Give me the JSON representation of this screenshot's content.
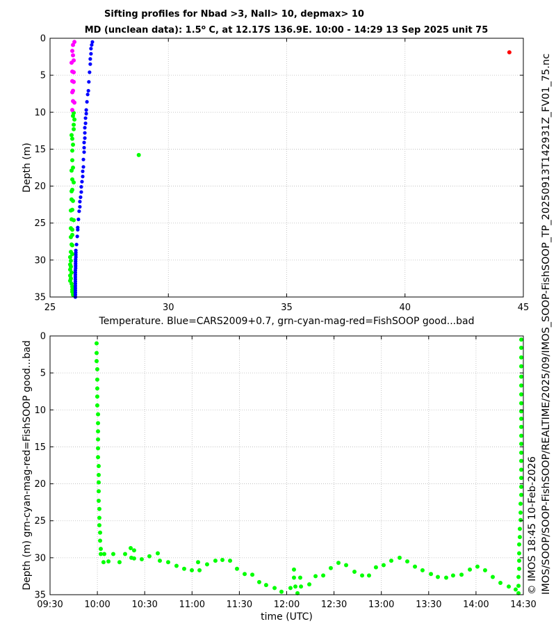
{
  "footer_annotations": {
    "file_path": "IMOS/SOOP/SOOP-FishSOOP/REALTIME/2025/09/IMOS_SOOP-FishSOOP_TP_20250913T142931Z_FV01_75.nc",
    "copyright": "© IMOS 18:45 10-Feb-2026"
  },
  "chart_data": [
    {
      "type": "scatter",
      "title": {
        "line1": "Sifting profiles for Nbad >3, Nall> 10, depmax> 10",
        "line2": [
          "MD (unclean data): 1.5",
          "o",
          " C, at 12.17S 136.9E. 10:00 - 14:29 13 Sep 2025 unit 75"
        ]
      },
      "xlabel": "Temperature. Blue=CARS2009+0.7, grn-cyan-mag-red=FishSOOP good...bad",
      "ylabel": "Depth (m)",
      "xlim": [
        25,
        45
      ],
      "ylim": [
        0,
        35
      ],
      "y_reversed": true,
      "grid": true,
      "xticks": [
        25,
        30,
        35,
        40,
        45
      ],
      "xtick_labels": [
        "25",
        "30",
        "35",
        "40",
        "45"
      ],
      "yticks": [
        0,
        5,
        10,
        15,
        20,
        25,
        30,
        35
      ],
      "ytick_labels": [
        "0",
        "5",
        "10",
        "15",
        "20",
        "25",
        "30",
        "35"
      ],
      "series": [
        {
          "color": "#00ff00",
          "points": [
            [
              26.0,
              10.1
            ],
            [
              25.97,
              10.5
            ],
            [
              26.03,
              11.0
            ],
            [
              26.0,
              11.7
            ],
            [
              26.0,
              12.3
            ],
            [
              25.91,
              13.1
            ],
            [
              25.94,
              13.6
            ],
            [
              25.97,
              14.4
            ],
            [
              25.94,
              15.2
            ],
            [
              25.94,
              16.5
            ],
            [
              25.97,
              17.5
            ],
            [
              25.91,
              17.9
            ],
            [
              25.94,
              19.1
            ],
            [
              26.0,
              19.5
            ],
            [
              25.94,
              20.5
            ],
            [
              25.91,
              20.7
            ],
            [
              25.91,
              21.8
            ],
            [
              25.97,
              22.0
            ],
            [
              25.94,
              23.2
            ],
            [
              25.88,
              23.3
            ],
            [
              25.91,
              24.5
            ],
            [
              26.0,
              24.6
            ],
            [
              25.88,
              25.7
            ],
            [
              25.94,
              25.9
            ],
            [
              25.94,
              26.6
            ],
            [
              25.88,
              26.9
            ],
            [
              25.91,
              27.9
            ],
            [
              25.94,
              28.0
            ],
            [
              25.88,
              28.9
            ],
            [
              25.94,
              29.2
            ],
            [
              25.85,
              29.6
            ],
            [
              25.88,
              30.1
            ],
            [
              25.85,
              30.6
            ],
            [
              25.88,
              30.9
            ],
            [
              25.85,
              31.3
            ],
            [
              25.91,
              31.7
            ],
            [
              25.85,
              32.1
            ],
            [
              25.88,
              32.5
            ],
            [
              25.85,
              32.8
            ],
            [
              25.91,
              33.2
            ],
            [
              25.94,
              33.6
            ],
            [
              25.94,
              34.0
            ],
            [
              25.94,
              34.3
            ],
            [
              25.97,
              34.7
            ],
            [
              28.75,
              15.8
            ]
          ]
        },
        {
          "color": "#ff00ff",
          "points": [
            [
              26.03,
              0.5
            ],
            [
              25.97,
              0.9
            ],
            [
              25.94,
              1.7
            ],
            [
              25.97,
              2.3
            ],
            [
              26.0,
              3.0
            ],
            [
              25.91,
              3.3
            ],
            [
              25.94,
              4.5
            ],
            [
              26.0,
              4.6
            ],
            [
              25.94,
              5.8
            ],
            [
              26.0,
              5.9
            ],
            [
              25.97,
              7.1
            ],
            [
              25.94,
              7.3
            ],
            [
              25.97,
              8.5
            ],
            [
              26.03,
              8.7
            ],
            [
              25.94,
              9.7
            ]
          ]
        },
        {
          "color": "#0000ff",
          "points": [
            [
              26.79,
              0.5
            ],
            [
              26.76,
              0.9
            ],
            [
              26.73,
              1.4
            ],
            [
              26.73,
              2.1
            ],
            [
              26.7,
              2.8
            ],
            [
              26.7,
              3.5
            ],
            [
              26.67,
              4.6
            ],
            [
              26.64,
              5.9
            ],
            [
              26.62,
              7.1
            ],
            [
              26.59,
              7.6
            ],
            [
              26.56,
              8.6
            ],
            [
              26.53,
              9.7
            ],
            [
              26.53,
              10.2
            ],
            [
              26.5,
              10.8
            ],
            [
              26.5,
              11.5
            ],
            [
              26.47,
              12.1
            ],
            [
              26.47,
              12.8
            ],
            [
              26.47,
              13.5
            ],
            [
              26.44,
              14.1
            ],
            [
              26.44,
              14.8
            ],
            [
              26.44,
              15.4
            ],
            [
              26.41,
              16.4
            ],
            [
              26.41,
              17.4
            ],
            [
              26.38,
              18.0
            ],
            [
              26.38,
              18.7
            ],
            [
              26.35,
              19.4
            ],
            [
              26.32,
              20.1
            ],
            [
              26.32,
              20.8
            ],
            [
              26.29,
              21.5
            ],
            [
              26.26,
              22.1
            ],
            [
              26.26,
              22.8
            ],
            [
              26.23,
              23.4
            ],
            [
              26.2,
              24.5
            ],
            [
              26.17,
              25.6
            ],
            [
              26.17,
              25.9
            ],
            [
              26.15,
              26.8
            ],
            [
              26.12,
              27.9
            ],
            [
              26.09,
              28.7
            ],
            [
              26.09,
              29.0
            ],
            [
              26.09,
              29.3
            ],
            [
              26.09,
              29.6
            ],
            [
              26.08,
              29.9
            ],
            [
              26.08,
              30.2
            ],
            [
              26.08,
              30.5
            ],
            [
              26.08,
              30.8
            ],
            [
              26.08,
              31.1
            ],
            [
              26.07,
              31.4
            ],
            [
              26.07,
              31.7
            ],
            [
              26.07,
              32.0
            ],
            [
              26.07,
              32.3
            ],
            [
              26.07,
              32.6
            ],
            [
              26.07,
              32.9
            ],
            [
              26.07,
              33.2
            ],
            [
              26.07,
              33.5
            ],
            [
              26.07,
              33.8
            ],
            [
              26.07,
              34.1
            ],
            [
              26.07,
              34.4
            ],
            [
              26.07,
              34.7
            ],
            [
              26.07,
              35.0
            ]
          ]
        },
        {
          "color": "#ff0000",
          "points": [
            [
              44.41,
              1.9
            ]
          ]
        }
      ]
    },
    {
      "type": "scatter",
      "xlabel": "time (UTC)",
      "ylabel": "Depth (m) grn-cyan-mag-red=FishSOOP good...bad",
      "xlim": [
        9.5,
        14.5
      ],
      "ylim": [
        0,
        35
      ],
      "y_reversed": true,
      "grid": true,
      "xticks": [
        9.5,
        10.0,
        10.5,
        11.0,
        11.5,
        12.0,
        12.5,
        13.0,
        13.5,
        14.0,
        14.5
      ],
      "xtick_labels": [
        "09:30",
        "10:00",
        "10:30",
        "11:00",
        "11:30",
        "12:00",
        "12:30",
        "13:00",
        "13:30",
        "14:00",
        "14:30"
      ],
      "yticks": [
        0,
        5,
        10,
        15,
        20,
        25,
        30,
        35
      ],
      "ytick_labels": [
        "0",
        "5",
        "10",
        "15",
        "20",
        "25",
        "30",
        "35"
      ],
      "series": [
        {
          "color": "#00ff00",
          "points": [
            [
              9.992,
              1.0
            ],
            [
              9.992,
              2.3
            ],
            [
              9.992,
              3.4
            ],
            [
              9.999,
              4.5
            ],
            [
              9.999,
              5.9
            ],
            [
              9.999,
              7.1
            ],
            [
              9.999,
              8.2
            ],
            [
              9.999,
              9.4
            ],
            [
              10.007,
              10.6
            ],
            [
              10.007,
              11.8
            ],
            [
              10.007,
              12.9
            ],
            [
              10.007,
              14.0
            ],
            [
              10.007,
              15.2
            ],
            [
              10.007,
              16.4
            ],
            [
              10.014,
              17.6
            ],
            [
              10.014,
              18.8
            ],
            [
              10.014,
              19.8
            ],
            [
              10.014,
              21.0
            ],
            [
              10.014,
              22.3
            ],
            [
              10.021,
              23.4
            ],
            [
              10.021,
              24.6
            ],
            [
              10.021,
              25.6
            ],
            [
              10.029,
              26.6
            ],
            [
              10.029,
              27.7
            ],
            [
              10.036,
              28.8
            ],
            [
              10.036,
              29.5
            ],
            [
              10.073,
              29.5
            ],
            [
              10.065,
              30.6
            ],
            [
              10.117,
              30.5
            ],
            [
              10.168,
              29.5
            ],
            [
              10.234,
              30.6
            ],
            [
              10.293,
              29.5
            ],
            [
              10.352,
              28.7
            ],
            [
              10.359,
              30.0
            ],
            [
              10.388,
              29.0
            ],
            [
              10.388,
              30.1
            ],
            [
              10.469,
              30.2
            ],
            [
              10.55,
              29.8
            ],
            [
              10.638,
              29.4
            ],
            [
              10.66,
              30.4
            ],
            [
              10.748,
              30.6
            ],
            [
              10.836,
              31.1
            ],
            [
              10.917,
              31.5
            ],
            [
              10.998,
              31.7
            ],
            [
              11.064,
              30.6
            ],
            [
              11.079,
              31.7
            ],
            [
              11.159,
              30.9
            ],
            [
              11.247,
              30.4
            ],
            [
              11.321,
              30.3
            ],
            [
              11.402,
              30.4
            ],
            [
              11.475,
              31.5
            ],
            [
              11.556,
              32.2
            ],
            [
              11.637,
              32.3
            ],
            [
              11.71,
              33.3
            ],
            [
              11.783,
              33.7
            ],
            [
              11.872,
              34.1
            ],
            [
              11.945,
              34.6
            ],
            [
              12.04,
              34.1
            ],
            [
              12.077,
              31.6
            ],
            [
              12.077,
              32.7
            ],
            [
              12.092,
              33.9
            ],
            [
              12.114,
              34.8
            ],
            [
              12.143,
              32.7
            ],
            [
              12.151,
              33.9
            ],
            [
              12.239,
              33.6
            ],
            [
              12.305,
              32.5
            ],
            [
              12.386,
              32.4
            ],
            [
              12.466,
              31.4
            ],
            [
              12.547,
              30.7
            ],
            [
              12.628,
              31.0
            ],
            [
              12.716,
              31.9
            ],
            [
              12.797,
              32.4
            ],
            [
              12.87,
              32.4
            ],
            [
              12.943,
              31.3
            ],
            [
              13.024,
              31.0
            ],
            [
              13.105,
              30.4
            ],
            [
              13.193,
              30.0
            ],
            [
              13.274,
              30.5
            ],
            [
              13.355,
              31.2
            ],
            [
              13.435,
              31.7
            ],
            [
              13.524,
              32.2
            ],
            [
              13.597,
              32.6
            ],
            [
              13.685,
              32.7
            ],
            [
              13.758,
              32.4
            ],
            [
              13.847,
              32.3
            ],
            [
              13.935,
              31.6
            ],
            [
              14.015,
              31.2
            ],
            [
              14.096,
              31.7
            ],
            [
              14.177,
              32.6
            ],
            [
              14.258,
              33.4
            ],
            [
              14.346,
              33.9
            ],
            [
              14.419,
              34.3
            ],
            [
              14.478,
              0.5
            ],
            [
              14.478,
              1.6
            ],
            [
              14.478,
              2.9
            ],
            [
              14.478,
              4.1
            ],
            [
              14.478,
              5.5
            ],
            [
              14.478,
              6.7
            ],
            [
              14.478,
              7.9
            ],
            [
              14.478,
              9.1
            ],
            [
              14.478,
              10.2
            ],
            [
              14.478,
              11.2
            ],
            [
              14.478,
              12.3
            ],
            [
              14.478,
              13.5
            ],
            [
              14.478,
              14.6
            ],
            [
              14.478,
              15.8
            ],
            [
              14.478,
              16.9
            ],
            [
              14.478,
              18.1
            ],
            [
              14.478,
              19.2
            ],
            [
              14.478,
              20.4
            ],
            [
              14.478,
              21.5
            ],
            [
              14.471,
              22.7
            ],
            [
              14.471,
              23.9
            ],
            [
              14.471,
              24.9
            ],
            [
              14.463,
              26.1
            ],
            [
              14.463,
              27.2
            ],
            [
              14.456,
              28.2
            ],
            [
              14.456,
              29.4
            ],
            [
              14.456,
              30.4
            ],
            [
              14.456,
              31.5
            ],
            [
              14.449,
              32.6
            ],
            [
              14.449,
              33.8
            ],
            [
              14.449,
              34.8
            ]
          ]
        }
      ]
    }
  ]
}
